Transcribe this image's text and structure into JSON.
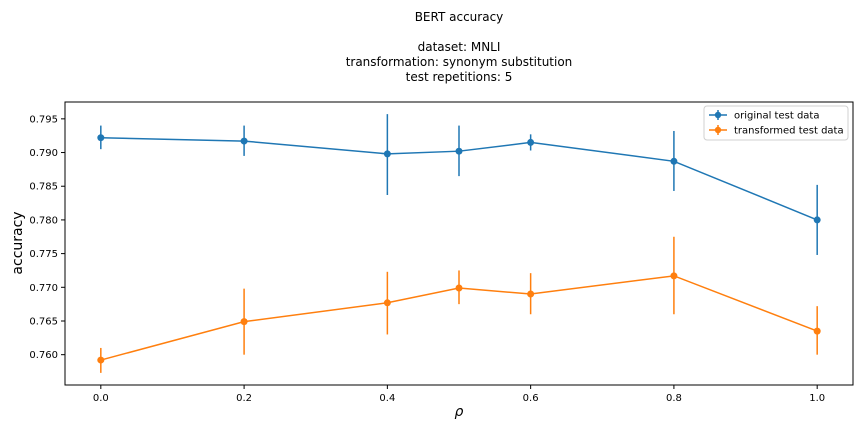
{
  "chart_data": {
    "type": "line",
    "title_lines": [
      "BERT accuracy",
      "",
      "dataset: MNLI",
      "transformation: synonym substitution",
      "test repetitions: 5"
    ],
    "xlabel": "ρ",
    "ylabel": "accuracy",
    "x": [
      0.0,
      0.2,
      0.4,
      0.5,
      0.6,
      0.8,
      1.0
    ],
    "xlim": [
      -0.05,
      1.05
    ],
    "ylim": [
      0.7555,
      0.7975
    ],
    "x_ticks": [
      "0.0",
      "0.2",
      "0.4",
      "0.6",
      "0.8",
      "1.0"
    ],
    "y_ticks": [
      "0.760",
      "0.765",
      "0.770",
      "0.775",
      "0.780",
      "0.785",
      "0.790",
      "0.795"
    ],
    "grid": false,
    "legend_position": "top-right",
    "series": [
      {
        "name": "original test data",
        "color": "#1f77b4",
        "values": [
          0.7922,
          0.7917,
          0.7898,
          0.7902,
          0.7915,
          0.7887,
          0.78
        ],
        "err_low": [
          0.7905,
          0.7895,
          0.7837,
          0.7865,
          0.7903,
          0.7843,
          0.7748
        ],
        "err_high": [
          0.794,
          0.794,
          0.7957,
          0.794,
          0.7927,
          0.7932,
          0.7852
        ]
      },
      {
        "name": "transformed test data",
        "color": "#ff7f0e",
        "values": [
          0.7592,
          0.7649,
          0.7677,
          0.7699,
          0.769,
          0.7717,
          0.7635
        ],
        "err_low": [
          0.7573,
          0.76,
          0.763,
          0.7675,
          0.766,
          0.766,
          0.76
        ],
        "err_high": [
          0.761,
          0.7698,
          0.7723,
          0.7725,
          0.7721,
          0.7775,
          0.7672
        ]
      }
    ]
  }
}
